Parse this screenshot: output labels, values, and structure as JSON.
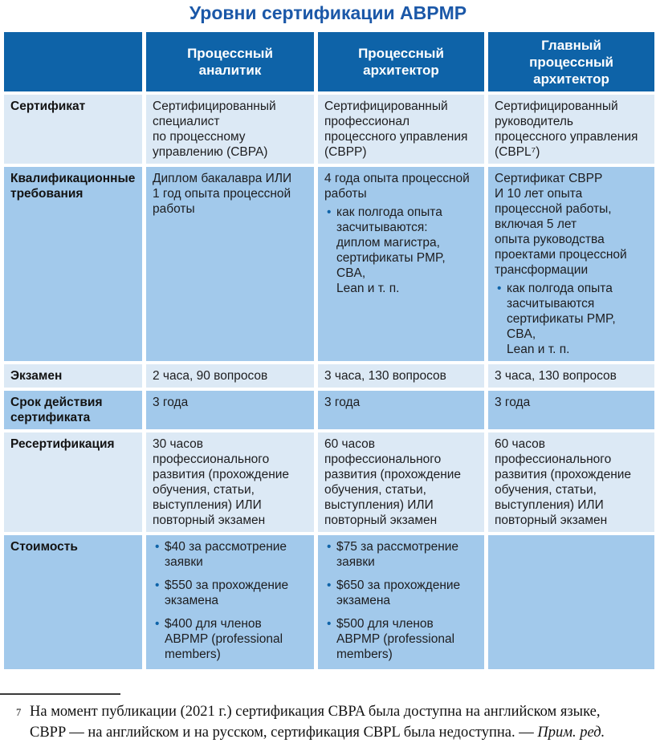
{
  "title": "Уровни сертификации ABPMP",
  "colors": {
    "header": "#0E63A8",
    "light": "#DCE9F5",
    "medium": "#A2C9EB",
    "title": "#1B58A8",
    "text": "#1D1D1F",
    "bullet": "#0E63A8"
  },
  "table": {
    "column_headers": [
      "",
      "Процессный\nаналитик",
      "Процессный\nархитектор",
      "Главный\nпроцессный\nархитектор"
    ],
    "rows": [
      {
        "label": "Сертификат",
        "shade": "light",
        "cells": [
          {
            "text": "Сертифицированный\nспециалист\nпо процессному\nуправлению (CBPA)"
          },
          {
            "text": "Сертифицированный\nпрофессионал\nпроцессного управления\n(CBPP)"
          },
          {
            "text": "Сертифицированный\nруководитель\nпроцессного управления\n(CBPL⁷)"
          }
        ]
      },
      {
        "label": "Квалификационные\nтребования",
        "shade": "medium",
        "cells": [
          {
            "text": "Диплом бакалавра ИЛИ\n1 год опыта процессной\nработы"
          },
          {
            "text": "4 года опыта процессной\nработы",
            "bullets": [
              "как полгода опыта\nзасчитываются:\nдиплом магистра,\nсертификаты PMP, CBA,\nLean и т. п."
            ]
          },
          {
            "text": "Сертификат CBPP\nИ 10 лет опыта\nпроцессной работы,\nвключая 5 лет\nопыта руководства\nпроектами процессной\nтрансформации",
            "bullets": [
              "как полгода опыта\nзасчитываются\nсертификаты PMP, CBA,\nLean и т. п."
            ]
          }
        ]
      },
      {
        "label": "Экзамен",
        "shade": "light",
        "cells": [
          {
            "text": "2 часа, 90 вопросов"
          },
          {
            "text": "3 часа, 130 вопросов"
          },
          {
            "text": "3 часа, 130 вопросов"
          }
        ]
      },
      {
        "label": "Срок действия\nсертификата",
        "shade": "medium",
        "cells": [
          {
            "text": "3 года"
          },
          {
            "text": "3 года"
          },
          {
            "text": "3 года"
          }
        ]
      },
      {
        "label": "Ресертификация",
        "shade": "light",
        "cells": [
          {
            "text": "30 часов\nпрофессионального\nразвития (прохождение\nобучения, статьи,\nвыступления) ИЛИ\nповторный экзамен"
          },
          {
            "text": "60 часов\nпрофессионального\nразвития (прохождение\nобучения, статьи,\nвыступления) ИЛИ\nповторный экзамен"
          },
          {
            "text": "60 часов\nпрофессионального\nразвития (прохождение\nобучения, статьи,\nвыступления) ИЛИ\nповторный экзамен"
          }
        ]
      },
      {
        "label": "Стоимость",
        "shade": "medium",
        "cells": [
          {
            "bullets": [
              "$40 за рассмотрение\nзаявки",
              "$550 за прохождение\nэкзамена",
              "$400 для членов\nABPMP (professional\nmembers)"
            ]
          },
          {
            "bullets": [
              "$75 за рассмотрение\nзаявки",
              "$650 за прохождение\nэкзамена",
              "$500 для членов\nABPMP (professional\nmembers)"
            ]
          },
          {}
        ]
      }
    ]
  },
  "footnote": {
    "marker": "7",
    "text": "На момент публикации (2021 г.) сертификация CBPA была доступна на английском языке,\nCBPP — на английском и на русском, сертификация CBPL была недоступна. — ",
    "italic": "Прим. ред."
  }
}
